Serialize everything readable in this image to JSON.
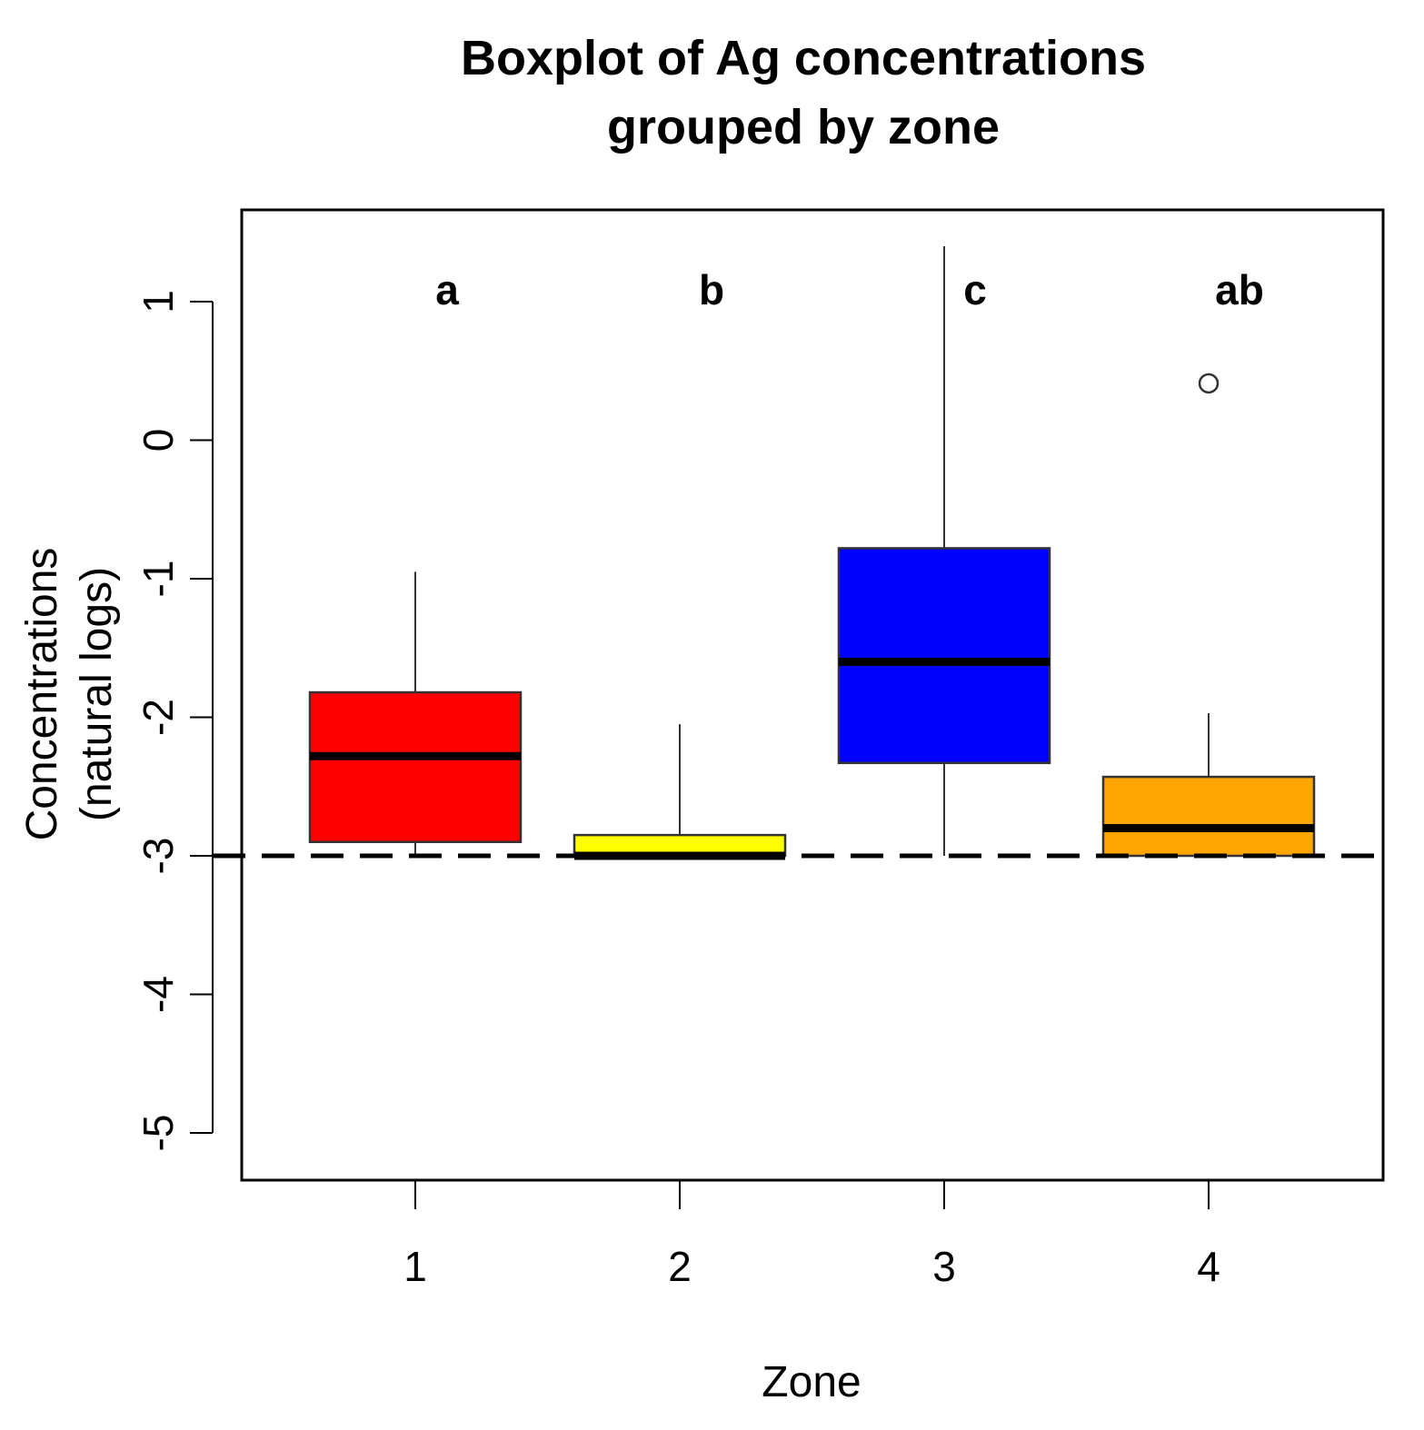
{
  "chart_data": {
    "type": "boxplot",
    "title_lines": [
      "Boxplot of Ag concentrations",
      "grouped by zone"
    ],
    "xlabel": "Zone",
    "ylabel_lines": [
      "Concentrations",
      "(natural logs)"
    ],
    "categories": [
      "1",
      "2",
      "3",
      "4"
    ],
    "group_letters": [
      "a",
      "b",
      "c",
      "ab"
    ],
    "yticks": [
      1,
      0,
      -1,
      -2,
      -3,
      -4,
      -5
    ],
    "ylim": [
      -5.35,
      1.65
    ],
    "reference_line": {
      "y": -3,
      "style": "dashed"
    },
    "boxes": [
      {
        "zone": "1",
        "color": "#ff0000",
        "whisker_low": -3.0,
        "q1": -2.9,
        "median": -2.28,
        "q3": -1.82,
        "whisker_high": -0.95,
        "outliers": []
      },
      {
        "zone": "2",
        "color": "#ffff00",
        "whisker_low": -3.0,
        "q1": -3.0,
        "median": -3.0,
        "q3": -2.85,
        "whisker_high": -2.05,
        "outliers": []
      },
      {
        "zone": "3",
        "color": "#0000ff",
        "whisker_low": -3.0,
        "q1": -2.33,
        "median": -1.6,
        "q3": -0.78,
        "whisker_high": 1.4,
        "outliers": []
      },
      {
        "zone": "4",
        "color": "#ffa500",
        "whisker_low": -3.0,
        "q1": -3.0,
        "median": -2.8,
        "q3": -2.43,
        "whisker_high": -1.97,
        "outliers": [
          0.41
        ]
      }
    ]
  }
}
